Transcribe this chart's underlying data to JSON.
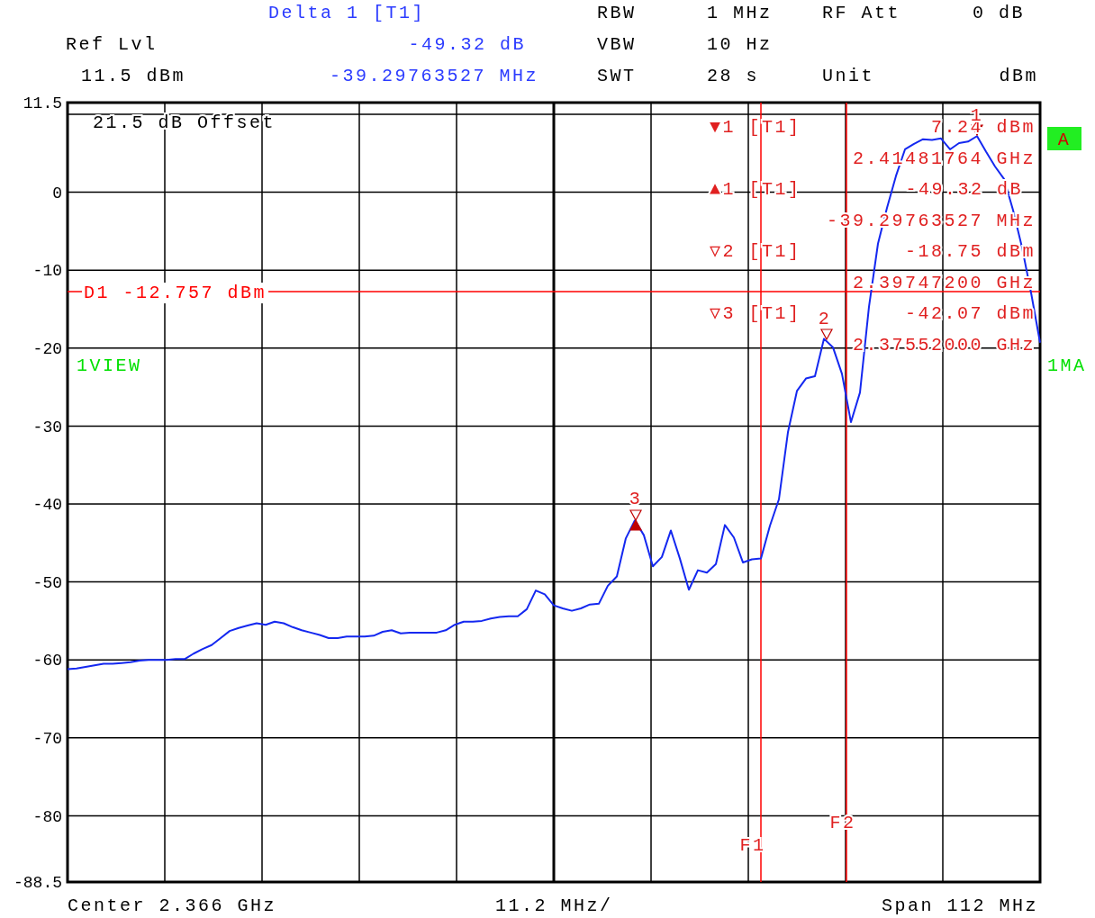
{
  "chart_data": {
    "type": "line",
    "ylim": [
      -88.5,
      11.5
    ],
    "yticks": [
      11.5,
      {
        "value": 10,
        "label": null
      },
      0,
      -10,
      -20,
      -30,
      -40,
      -50,
      -60,
      -70,
      -80,
      -88.5
    ],
    "tick_labels": "y",
    "grid": true,
    "line_style": "solid",
    "marker": "none",
    "categories": [
      null,
      null,
      null,
      null,
      null,
      null,
      null,
      null,
      null,
      null,
      null,
      null,
      null,
      null,
      null,
      null,
      null,
      null,
      null,
      null,
      null,
      null,
      null,
      null,
      null,
      null,
      null,
      null,
      null,
      null,
      null,
      null,
      null,
      null,
      null,
      null,
      null,
      null,
      null,
      null,
      null,
      null,
      null,
      null,
      null,
      null,
      null,
      null,
      null,
      null,
      null,
      null,
      null,
      null,
      null,
      null,
      null,
      null,
      null,
      null,
      null,
      null,
      null,
      null,
      null,
      null,
      null,
      null,
      null,
      null,
      null,
      null,
      null,
      null,
      null,
      null,
      null,
      null,
      null,
      null,
      null,
      null,
      null,
      null,
      null,
      null,
      null,
      null,
      null,
      null,
      null,
      null,
      null,
      null,
      null,
      null,
      null,
      null,
      null,
      null,
      null,
      null,
      null,
      null,
      null,
      null,
      null,
      null,
      null
    ],
    "series": [
      {
        "color": "#1428f0",
        "values": [
          -61.2,
          -61.1,
          -60.9,
          -60.7,
          -60.5,
          -60.5,
          -60.4,
          -60.3,
          -60.1,
          -60.0,
          -60.0,
          -60.0,
          -59.9,
          -59.9,
          -59.2,
          -58.6,
          -58.1,
          -57.2,
          -56.3,
          -55.9,
          -55.6,
          -55.3,
          -55.5,
          -55.1,
          -55.3,
          -55.8,
          -56.2,
          -56.5,
          -56.8,
          -57.2,
          -57.2,
          -57.0,
          -57.0,
          -57.0,
          -56.9,
          -56.4,
          -56.2,
          -56.6,
          -56.5,
          -56.5,
          -56.5,
          -56.5,
          -56.2,
          -55.5,
          -55.1,
          -55.1,
          -55.0,
          -54.7,
          -54.5,
          -54.4,
          -54.4,
          -53.5,
          -51.1,
          -51.6,
          -53.0,
          -53.4,
          -53.7,
          -53.4,
          -52.9,
          -52.8,
          -50.5,
          -49.3,
          -44.4,
          -42.1,
          -44.0,
          -48.0,
          -46.8,
          -43.4,
          -47.0,
          -51.0,
          -48.5,
          -48.8,
          -47.7,
          -42.7,
          -44.3,
          -47.5,
          -47.1,
          -47.0,
          -42.8,
          -39.4,
          -30.8,
          -25.5,
          -23.9,
          -23.6,
          -18.8,
          -19.9,
          -23.3,
          -29.5,
          -25.7,
          -14.7,
          -6.6,
          -2.0,
          2.1,
          5.5,
          6.2,
          6.8,
          6.7,
          6.9,
          5.5,
          6.3,
          6.5,
          7.2,
          5.2,
          3.3,
          1.7,
          -2.3,
          -7.1,
          -12.9,
          -19.3
        ]
      }
    ],
    "ref_lines": [
      {
        "axis": "y",
        "value": -12.757,
        "label": "D1 -12.757 dBm",
        "color": "#ff0000"
      }
    ],
    "annotations": [
      "Delta 1 [T1]",
      "Ref Lvl",
      "-49.32 dB",
      "11.5 dBm",
      "-39.29763527 MHz",
      "RBW",
      "1 MHz",
      "RF Att",
      "0 dB",
      "VBW",
      "10 Hz",
      "SWT",
      "28 s",
      "Unit",
      "dBm",
      "21.5 dB Offset",
      "1VIEW",
      "1MA",
      "A",
      "▼1 [T1]",
      "7.24 dBm",
      "2.41481764 GHz",
      "▲1 [T1]",
      "-49.32 dB",
      "-39.29763527 MHz",
      "▽2 [T1]",
      "-18.75 dBm",
      "2.39747200 GHz",
      "▽3 [T1]",
      "-42.07 dBm",
      "2.37552000 GHz",
      "Center 2.366 GHz",
      "11.2 MHz/",
      "Span 112 MHz",
      "1",
      "2",
      "3",
      "F1",
      "F2"
    ]
  }
}
